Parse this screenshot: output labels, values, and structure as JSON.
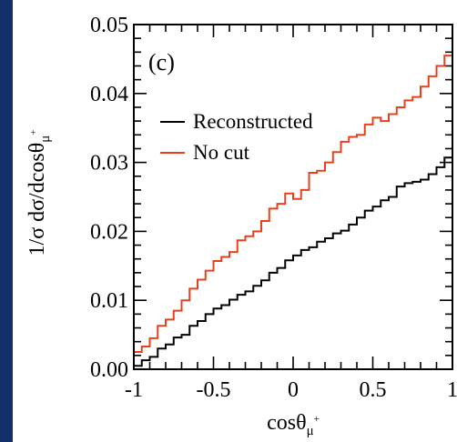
{
  "colors": {
    "background": "#13306a",
    "panel": "#ffffff",
    "reconstructed": "#000000",
    "no_cut": "#e8401c"
  },
  "chart_data": {
    "type": "line",
    "step": true,
    "panel_label": "(c)",
    "xlabel_base": "cosθ",
    "xlabel_sub": "μ",
    "xlabel_sup": "+",
    "ylabel_base": "1/σ dσ/dcosθ",
    "ylabel_sub": "μ",
    "ylabel_sup": "+",
    "xlim": [
      -1,
      1
    ],
    "ylim": [
      0,
      0.05
    ],
    "x_ticks": [
      -1,
      -0.5,
      0,
      0.5,
      1
    ],
    "x_tick_labels": [
      "-1",
      "-0.5",
      "0",
      "0.5",
      "1"
    ],
    "y_ticks": [
      0,
      0.01,
      0.02,
      0.03,
      0.04,
      0.05
    ],
    "y_tick_labels": [
      "0.00",
      "0.01",
      "0.02",
      "0.03",
      "0.04",
      "0.05"
    ],
    "x_minor_step": 0.1,
    "y_minor_step": 0.002,
    "legend": {
      "position": "top-left"
    },
    "bin_edges": [
      -1.0,
      -0.95,
      -0.9,
      -0.85,
      -0.8,
      -0.75,
      -0.7,
      -0.65,
      -0.6,
      -0.55,
      -0.5,
      -0.45,
      -0.4,
      -0.35,
      -0.3,
      -0.25,
      -0.2,
      -0.15,
      -0.1,
      -0.05,
      0.0,
      0.05,
      0.1,
      0.15,
      0.2,
      0.25,
      0.3,
      0.35,
      0.4,
      0.45,
      0.5,
      0.55,
      0.6,
      0.65,
      0.7,
      0.75,
      0.8,
      0.85,
      0.9,
      0.95,
      1.0
    ],
    "series": [
      {
        "name": "Reconstructed",
        "color": "#000000",
        "values": [
          0.0005,
          0.0013,
          0.0018,
          0.003,
          0.0036,
          0.0046,
          0.005,
          0.0063,
          0.007,
          0.008,
          0.0088,
          0.0093,
          0.0101,
          0.0108,
          0.0113,
          0.0121,
          0.0129,
          0.014,
          0.0147,
          0.0158,
          0.0165,
          0.0173,
          0.0177,
          0.0185,
          0.019,
          0.0197,
          0.0201,
          0.021,
          0.022,
          0.023,
          0.0236,
          0.0245,
          0.025,
          0.0265,
          0.027,
          0.0272,
          0.0275,
          0.0283,
          0.0293,
          0.0307
        ]
      },
      {
        "name": "No cut",
        "color": "#e8401c",
        "values": [
          0.0025,
          0.0033,
          0.0045,
          0.0063,
          0.0072,
          0.0085,
          0.01,
          0.0117,
          0.013,
          0.0143,
          0.0157,
          0.0163,
          0.017,
          0.0187,
          0.0193,
          0.02,
          0.0215,
          0.0233,
          0.024,
          0.0255,
          0.0247,
          0.026,
          0.0285,
          0.0288,
          0.03,
          0.0315,
          0.033,
          0.0337,
          0.034,
          0.0355,
          0.0365,
          0.036,
          0.037,
          0.038,
          0.039,
          0.0395,
          0.041,
          0.0425,
          0.044,
          0.0455
        ]
      }
    ]
  }
}
